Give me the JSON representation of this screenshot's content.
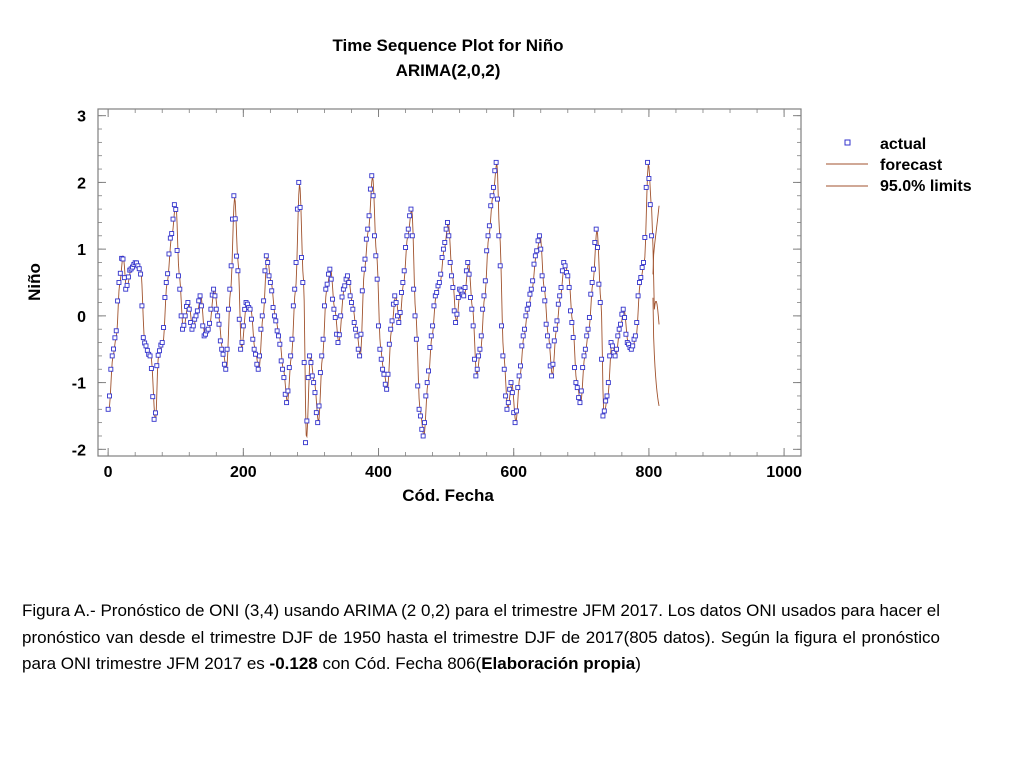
{
  "chart_data": {
    "type": "line",
    "title": "Time Sequence Plot for Niño",
    "subtitle": "ARIMA(2,0,2)",
    "xlabel": "Cód. Fecha",
    "ylabel": "Niño",
    "xlim": [
      -15,
      1025
    ],
    "ylim": [
      -2.1,
      3.1
    ],
    "xticks": [
      0,
      200,
      400,
      600,
      800,
      1000
    ],
    "yticks": [
      -2,
      -1,
      0,
      1,
      2,
      3
    ],
    "xtick_labels": [
      "0",
      "200",
      "400",
      "600",
      "800",
      "1000"
    ],
    "ytick_labels": [
      "-2",
      "-1",
      "0",
      "1",
      "2",
      "3"
    ],
    "grid": false,
    "legend_position": "right",
    "colors": {
      "actual": "#3333cc",
      "forecast": "#a0522d",
      "limits": "#a0522d"
    },
    "legend": [
      "actual",
      "forecast",
      "95.0% limits"
    ],
    "actual_knots": [
      [
        0,
        -1.4
      ],
      [
        6,
        -0.6
      ],
      [
        11,
        -0.3
      ],
      [
        16,
        0.5
      ],
      [
        21,
        0.9
      ],
      [
        26,
        0.4
      ],
      [
        33,
        0.7
      ],
      [
        41,
        0.8
      ],
      [
        47,
        0.7
      ],
      [
        53,
        -0.4
      ],
      [
        62,
        -0.6
      ],
      [
        69,
        -1.6
      ],
      [
        73,
        -0.6
      ],
      [
        80,
        -0.4
      ],
      [
        86,
        0.5
      ],
      [
        93,
        1.2
      ],
      [
        99,
        1.7
      ],
      [
        104,
        0.6
      ],
      [
        110,
        -0.2
      ],
      [
        118,
        0.2
      ],
      [
        124,
        -0.2
      ],
      [
        130,
        0.0
      ],
      [
        136,
        0.3
      ],
      [
        142,
        -0.3
      ],
      [
        148,
        -0.2
      ],
      [
        156,
        0.4
      ],
      [
        162,
        0.0
      ],
      [
        168,
        -0.5
      ],
      [
        174,
        -0.8
      ],
      [
        180,
        0.4
      ],
      [
        186,
        1.8
      ],
      [
        191,
        0.8
      ],
      [
        196,
        -0.5
      ],
      [
        204,
        0.2
      ],
      [
        210,
        0.1
      ],
      [
        216,
        -0.5
      ],
      [
        222,
        -0.8
      ],
      [
        228,
        0.0
      ],
      [
        234,
        0.9
      ],
      [
        240,
        0.5
      ],
      [
        246,
        0.0
      ],
      [
        252,
        -0.3
      ],
      [
        258,
        -0.8
      ],
      [
        264,
        -1.3
      ],
      [
        270,
        -0.6
      ],
      [
        276,
        0.4
      ],
      [
        282,
        2.0
      ],
      [
        288,
        0.5
      ],
      [
        292,
        -1.9
      ],
      [
        298,
        -0.6
      ],
      [
        304,
        -1.0
      ],
      [
        310,
        -1.6
      ],
      [
        316,
        -0.6
      ],
      [
        322,
        0.4
      ],
      [
        328,
        0.7
      ],
      [
        334,
        0.1
      ],
      [
        340,
        -0.4
      ],
      [
        348,
        0.4
      ],
      [
        354,
        0.6
      ],
      [
        360,
        0.2
      ],
      [
        366,
        -0.2
      ],
      [
        372,
        -0.6
      ],
      [
        378,
        0.7
      ],
      [
        384,
        1.3
      ],
      [
        390,
        2.1
      ],
      [
        396,
        0.9
      ],
      [
        402,
        -0.5
      ],
      [
        406,
        -0.8
      ],
      [
        412,
        -1.1
      ],
      [
        418,
        -0.2
      ],
      [
        424,
        0.3
      ],
      [
        430,
        -0.1
      ],
      [
        436,
        0.5
      ],
      [
        442,
        1.2
      ],
      [
        448,
        1.6
      ],
      [
        454,
        0.0
      ],
      [
        460,
        -1.4
      ],
      [
        466,
        -1.8
      ],
      [
        472,
        -1.0
      ],
      [
        478,
        -0.3
      ],
      [
        484,
        0.3
      ],
      [
        490,
        0.5
      ],
      [
        496,
        1.0
      ],
      [
        502,
        1.4
      ],
      [
        508,
        0.6
      ],
      [
        514,
        -0.1
      ],
      [
        520,
        0.4
      ],
      [
        526,
        0.3
      ],
      [
        532,
        0.8
      ],
      [
        538,
        0.1
      ],
      [
        544,
        -0.9
      ],
      [
        550,
        -0.5
      ],
      [
        556,
        0.3
      ],
      [
        562,
        1.2
      ],
      [
        568,
        1.8
      ],
      [
        574,
        2.3
      ],
      [
        578,
        1.2
      ],
      [
        584,
        -0.6
      ],
      [
        590,
        -1.4
      ],
      [
        596,
        -1.0
      ],
      [
        602,
        -1.6
      ],
      [
        608,
        -0.9
      ],
      [
        614,
        -0.3
      ],
      [
        620,
        0.1
      ],
      [
        626,
        0.4
      ],
      [
        632,
        0.9
      ],
      [
        638,
        1.2
      ],
      [
        644,
        0.4
      ],
      [
        650,
        -0.3
      ],
      [
        656,
        -0.9
      ],
      [
        662,
        -0.2
      ],
      [
        668,
        0.3
      ],
      [
        674,
        0.8
      ],
      [
        680,
        0.6
      ],
      [
        686,
        -0.1
      ],
      [
        692,
        -1.0
      ],
      [
        698,
        -1.3
      ],
      [
        704,
        -0.6
      ],
      [
        710,
        -0.2
      ],
      [
        716,
        0.5
      ],
      [
        722,
        1.3
      ],
      [
        728,
        0.2
      ],
      [
        732,
        -1.5
      ],
      [
        738,
        -1.2
      ],
      [
        744,
        -0.4
      ],
      [
        750,
        -0.6
      ],
      [
        756,
        -0.2
      ],
      [
        762,
        0.1
      ],
      [
        768,
        -0.4
      ],
      [
        774,
        -0.5
      ],
      [
        780,
        -0.3
      ],
      [
        786,
        0.5
      ],
      [
        792,
        0.8
      ],
      [
        798,
        2.3
      ],
      [
        803,
        1.6
      ],
      [
        805,
        0.8
      ]
    ],
    "forecast_start": 806,
    "forecast_value": -0.128,
    "limits_end": 815,
    "upper_limit_end": 1.6,
    "lower_limit_end": -1.35
  },
  "caption": {
    "part1": "Figura A.- Pronóstico de ONI (3,4) usando ARIMA (2 0,2) para el trimestre JFM 2017. Los datos ONI usados para hacer el pronóstico van desde el trimestre DJF de 1950 hasta el trimestre DJF de 2017(805 datos). Según la figura el pronóstico para ONI trimestre JFM 2017 es ",
    "value": "-0.128",
    "part2": " con Cód. Fecha 806(",
    "bold_end": "Elaboración propia",
    "part3": ")"
  }
}
